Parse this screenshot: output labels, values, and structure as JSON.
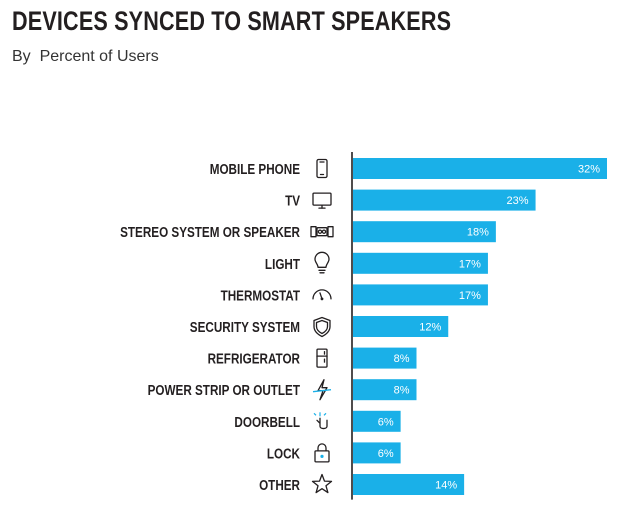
{
  "header": {
    "title": "DEVICES SYNCED TO SMART SPEAKERS",
    "subtitle": "By  Percent of Users"
  },
  "colors": {
    "bar": "#1ab0e8",
    "axis": "#231f20",
    "value_text": "#ffffff"
  },
  "chart_data": {
    "type": "bar",
    "orientation": "horizontal",
    "title": "DEVICES SYNCED TO SMART SPEAKERS",
    "subtitle": "By  Percent of Users",
    "categories": [
      "MOBILE PHONE",
      "TV",
      "STEREO SYSTEM OR SPEAKER",
      "LIGHT",
      "THERMOSTAT",
      "SECURITY SYSTEM",
      "REFRIGERATOR",
      "POWER STRIP OR OUTLET",
      "DOORBELL",
      "LOCK",
      "OTHER"
    ],
    "values": [
      32,
      23,
      18,
      17,
      17,
      12,
      8,
      8,
      6,
      6,
      14
    ],
    "value_labels": [
      "32%",
      "23%",
      "18%",
      "17%",
      "17%",
      "12%",
      "8%",
      "8%",
      "6%",
      "6%",
      "14%"
    ],
    "icons": [
      "mobile-phone-icon",
      "tv-icon",
      "stereo-speaker-icon",
      "light-bulb-icon",
      "thermostat-icon",
      "security-shield-icon",
      "refrigerator-icon",
      "power-plug-icon",
      "doorbell-icon",
      "lock-icon",
      "star-icon"
    ],
    "xlim": [
      0,
      32
    ],
    "grid": false,
    "legend": "none"
  }
}
